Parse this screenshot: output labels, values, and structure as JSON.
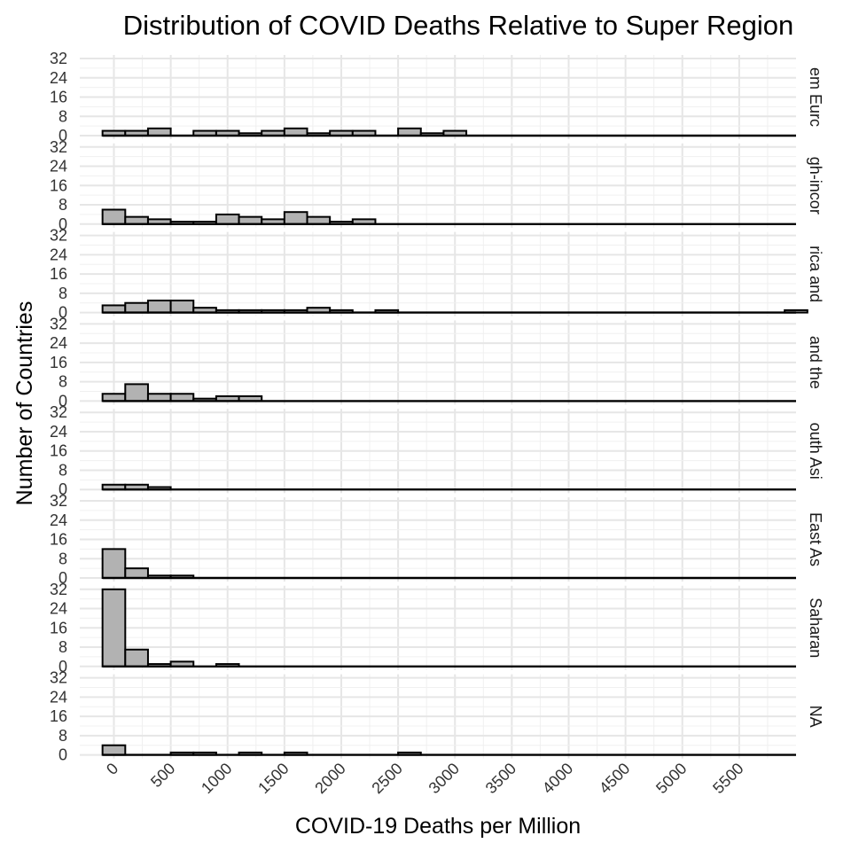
{
  "chart_data": {
    "type": "bar",
    "title": "Distribution of COVID Deaths Relative to Super Region",
    "xlabel": "COVID-19 Deaths per Million",
    "ylabel": "Number of Countries",
    "bin_width": 200,
    "xlim": [
      -300,
      6000
    ],
    "ylim": [
      0,
      32
    ],
    "x_ticks": [
      0,
      500,
      1000,
      1500,
      2000,
      2500,
      3000,
      3500,
      4000,
      4500,
      5000,
      5500
    ],
    "x_tick_labels": [
      "0",
      "500",
      "1000",
      "1500",
      "2000",
      "2500",
      "3000",
      "3500",
      "4000",
      "4500",
      "5000",
      "5500"
    ],
    "y_ticks": [
      0,
      8,
      16,
      24,
      32
    ],
    "y_tick_labels": [
      "0",
      "8",
      "16",
      "24",
      "32"
    ],
    "grid": true,
    "facets": [
      {
        "label": "em Eurc",
        "bin_starts": [
          -100,
          100,
          300,
          500,
          700,
          900,
          1100,
          1300,
          1500,
          1700,
          1900,
          2100,
          2300,
          2500,
          2700,
          2900
        ],
        "values": [
          2,
          2,
          3,
          0,
          2,
          2,
          1,
          2,
          3,
          1,
          2,
          2,
          0,
          3,
          1,
          2
        ]
      },
      {
        "label": "gh-incor",
        "bin_starts": [
          -100,
          100,
          300,
          500,
          700,
          900,
          1100,
          1300,
          1500,
          1700,
          1900,
          2100
        ],
        "values": [
          6,
          3,
          2,
          1,
          1,
          4,
          3,
          2,
          5,
          3,
          1,
          2
        ]
      },
      {
        "label": "rica and",
        "bin_starts": [
          -100,
          100,
          300,
          500,
          700,
          900,
          1100,
          1300,
          1500,
          1700,
          1900,
          2100,
          2300,
          5900
        ],
        "values": [
          3,
          4,
          5,
          5,
          2,
          1,
          1,
          1,
          1,
          2,
          1,
          0,
          1,
          1
        ]
      },
      {
        "label": "and the",
        "bin_starts": [
          -100,
          100,
          300,
          500,
          700,
          900,
          1100
        ],
        "values": [
          3,
          7,
          3,
          3,
          1,
          2,
          2
        ]
      },
      {
        "label": "outh Asi",
        "bin_starts": [
          -100,
          100,
          300
        ],
        "values": [
          2,
          2,
          1
        ]
      },
      {
        "label": "East As",
        "bin_starts": [
          -100,
          100,
          300,
          500
        ],
        "values": [
          12,
          4,
          1,
          1
        ]
      },
      {
        "label": "Saharan",
        "bin_starts": [
          -100,
          100,
          300,
          500,
          700,
          900
        ],
        "values": [
          32,
          7,
          1,
          2,
          0,
          1
        ]
      },
      {
        "label": "NA",
        "bin_starts": [
          -100,
          100,
          300,
          500,
          700,
          900,
          1100,
          1300,
          1500,
          1700,
          1900,
          2100,
          2300,
          2500
        ],
        "values": [
          4,
          0,
          0,
          1,
          1,
          0,
          1,
          0,
          1,
          0,
          0,
          0,
          0,
          1
        ]
      }
    ]
  }
}
